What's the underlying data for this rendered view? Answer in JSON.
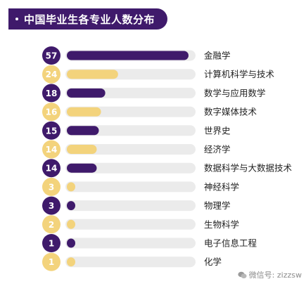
{
  "title": "中国毕业生各专业人数分布",
  "watermark": "微信号: zizzsw",
  "colors": {
    "dark": "#3f1a6b",
    "light": "#f3d37c",
    "track": "#ebebeb",
    "text": "#222222"
  },
  "chart_data": {
    "type": "bar",
    "orientation": "horizontal",
    "title": "中国毕业生各专业人数分布",
    "categories": [
      "金融学",
      "计算机科学与技术",
      "数学与应用数学",
      "数字媒体技术",
      "世界史",
      "经济学",
      "数据科学与大数据技术",
      "神经科学",
      "物理学",
      "生物科学",
      "电子信息工程",
      "化学"
    ],
    "values": [
      57,
      24,
      18,
      16,
      15,
      14,
      14,
      3,
      3,
      2,
      1,
      1
    ],
    "xlim": [
      0,
      80
    ],
    "grid": false,
    "legend": "none",
    "data_labels": true
  }
}
